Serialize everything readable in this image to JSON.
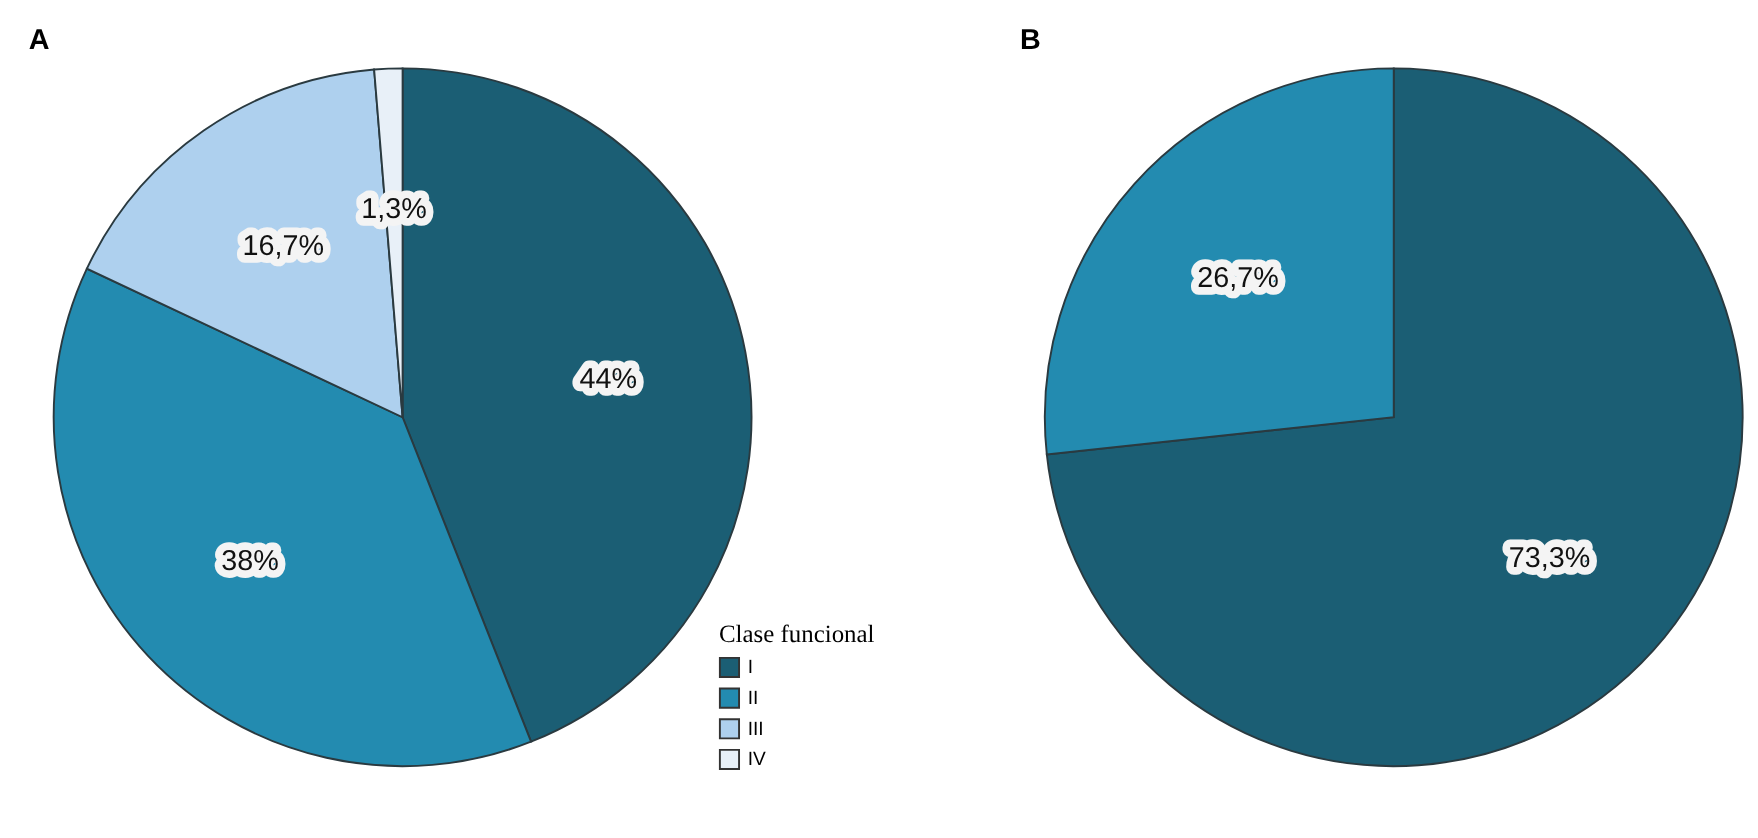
{
  "chart_data": [
    {
      "type": "pie",
      "title": "A",
      "legend_title": "Clase funcional",
      "legend": "bottom right",
      "categories": [
        "I",
        "II",
        "III",
        "IV"
      ],
      "values": [
        44,
        38,
        16.7,
        1.3
      ],
      "colors": [
        "#1b5e74",
        "#238bb0",
        "#aed0ee",
        "#e8f0f8"
      ],
      "value_labels": [
        "44%",
        "38%",
        "16,7%",
        "1,3%"
      ]
    },
    {
      "type": "pie",
      "title": "B",
      "categories": [
        null,
        null
      ],
      "values": [
        73.3,
        26.7
      ],
      "colors": [
        "#1b5e74",
        "#238bb0"
      ],
      "value_labels": [
        "73,3%",
        "26,7%"
      ],
      "legend": false
    }
  ]
}
